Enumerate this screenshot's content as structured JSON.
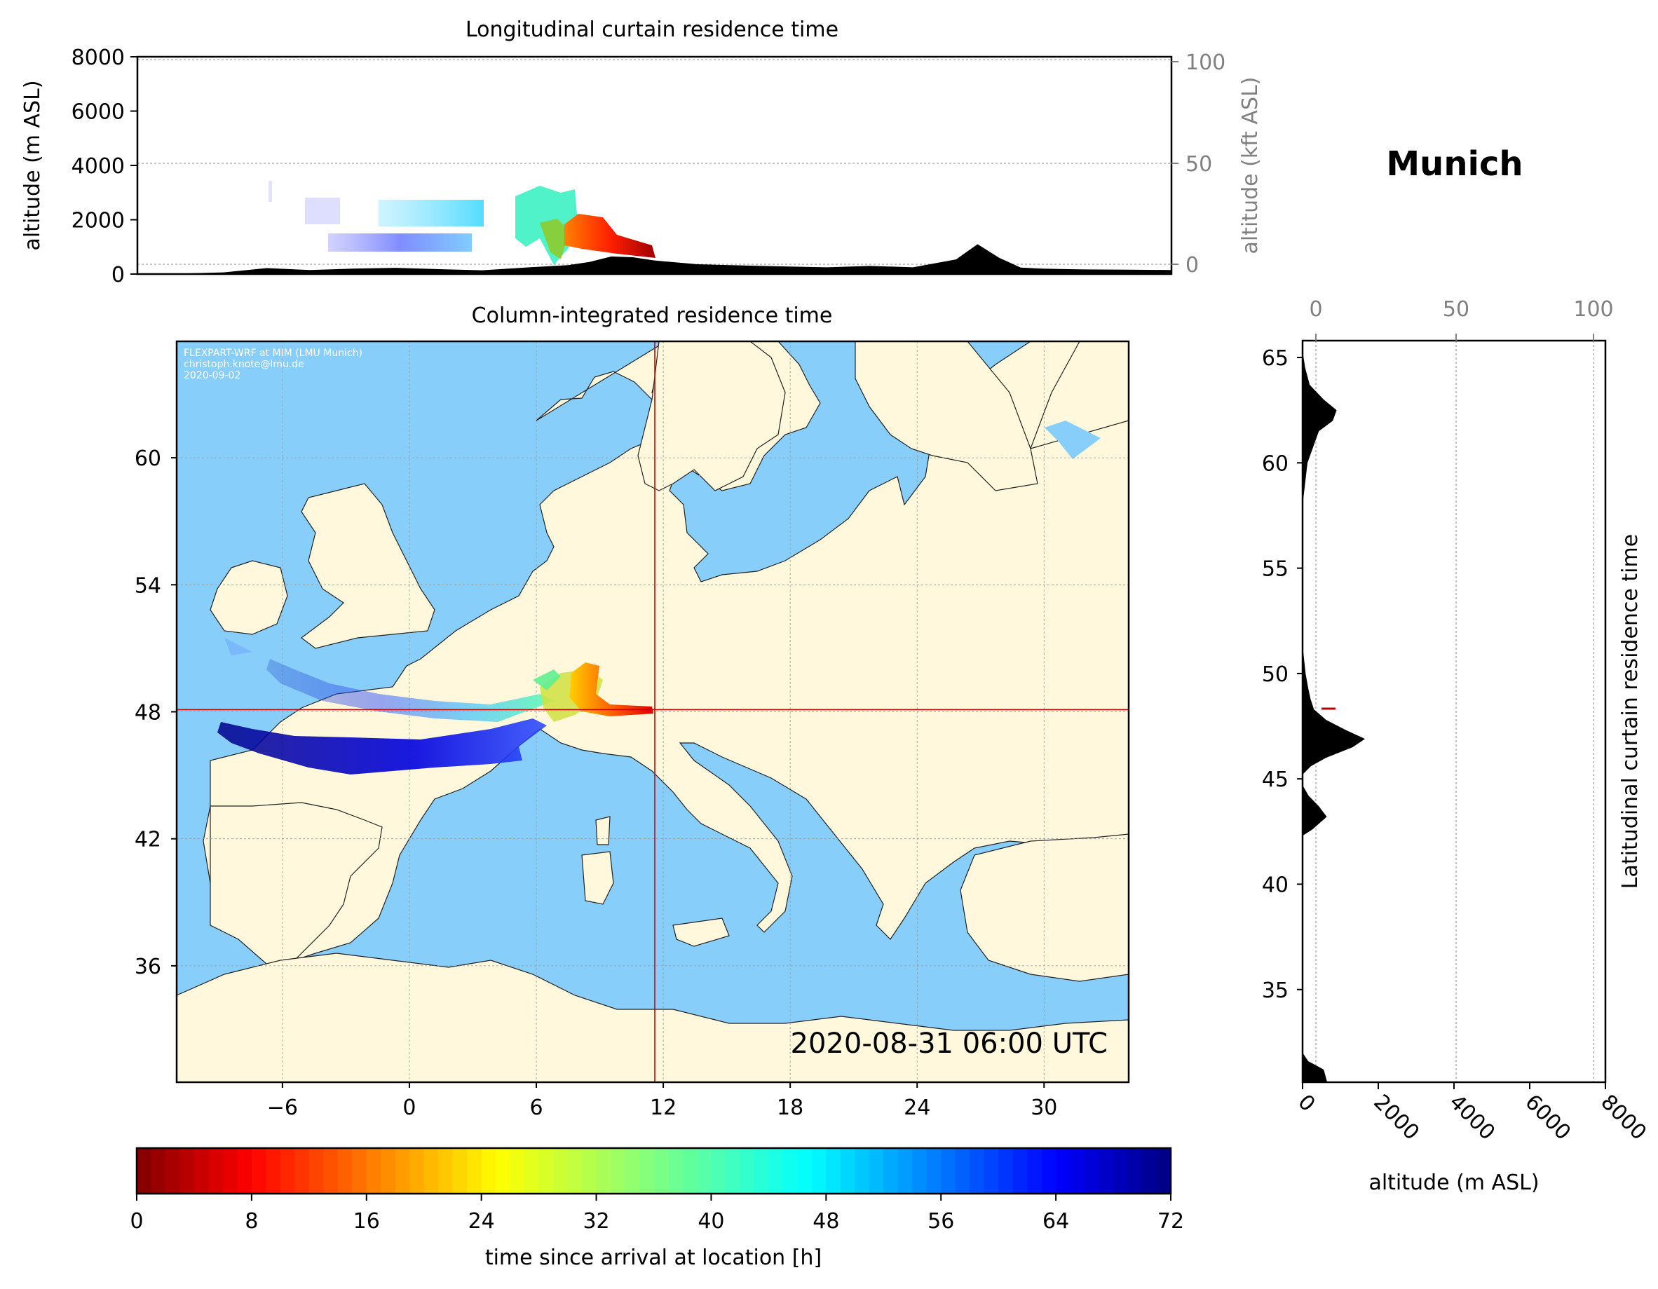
{
  "chart_data": [
    {
      "type": "area",
      "title": "Longitudinal curtain residence time",
      "ylabel": "altitude (m ASL)",
      "ylim": [
        0,
        8000
      ],
      "yticks": [
        "0",
        "2000",
        "4000",
        "6000",
        "8000"
      ],
      "y2label": "altitude (kft ASL)",
      "y2ticks": [
        "0",
        "50",
        "100"
      ],
      "x": [
        -14,
        -12,
        -10,
        -8,
        -6,
        -4,
        -2,
        0,
        2,
        4,
        6,
        7,
        8,
        9,
        10,
        12,
        14,
        16,
        18,
        20,
        22,
        24,
        25,
        26,
        27,
        28,
        30,
        32,
        34
      ],
      "terrain_m": [
        0,
        20,
        60,
        220,
        150,
        200,
        230,
        180,
        140,
        240,
        330,
        450,
        650,
        620,
        500,
        360,
        320,
        280,
        250,
        300,
        250,
        540,
        1100,
        600,
        240,
        200,
        170,
        160,
        150
      ],
      "grid": true
    },
    {
      "type": "scatter",
      "title": "Column-integrated residence time",
      "xticks": [
        "−6",
        "0",
        "6",
        "12",
        "18",
        "24",
        "30"
      ],
      "yticks": [
        "36",
        "42",
        "48",
        "54",
        "60"
      ],
      "xlim": [
        -11,
        34
      ],
      "ylim": [
        30.5,
        65.5
      ],
      "station": {
        "lon": 11.6,
        "lat": 48.1
      },
      "credits": [
        "FLEXPART-WRF at MIM (LMU Munich)",
        "christoph.knote@lmu.de",
        "2020-09-02"
      ],
      "timestamp": "2020-08-31 06:00 UTC",
      "colors": {
        "sea": "#87cefa",
        "land": "#fff8dc",
        "crosshair": "#d00000"
      }
    },
    {
      "type": "area",
      "ylabel": "Latitudinal curtain residence time",
      "xlabel": "altitude (m ASL)",
      "xticks": [
        "0",
        "2000",
        "4000",
        "6000",
        "8000"
      ],
      "x2ticks": [
        "0",
        "50",
        "100"
      ],
      "yticks": [
        "35",
        "40",
        "45",
        "50",
        "55",
        "60",
        "65"
      ],
      "ylim": [
        30.6,
        65.8
      ],
      "lat": [
        30.6,
        31.2,
        31.6,
        32.0,
        42.3,
        42.6,
        43.2,
        43.7,
        44.2,
        44.7,
        45.2,
        45.6,
        46.0,
        46.5,
        46.9,
        47.3,
        47.8,
        48.3,
        48.8,
        49.3,
        50.0,
        51.0,
        52.0,
        58.0,
        60.0,
        61.5,
        62.0,
        62.5,
        63.0,
        63.7,
        64.5,
        65.3,
        65.8
      ],
      "terrain_m": [
        650,
        560,
        150,
        0,
        0,
        260,
        640,
        430,
        160,
        0,
        0,
        220,
        620,
        1320,
        1650,
        1160,
        620,
        300,
        210,
        150,
        80,
        20,
        0,
        0,
        130,
        430,
        800,
        900,
        560,
        190,
        70,
        0,
        0
      ]
    },
    {
      "type": "heatmap",
      "xlabel": "time since arrival at location [h]",
      "xlim": [
        0,
        72
      ],
      "xticks": [
        "0",
        "8",
        "16",
        "24",
        "32",
        "40",
        "48",
        "56",
        "64",
        "72"
      ],
      "colormap": "jet_r"
    }
  ],
  "station_name": "Munich"
}
